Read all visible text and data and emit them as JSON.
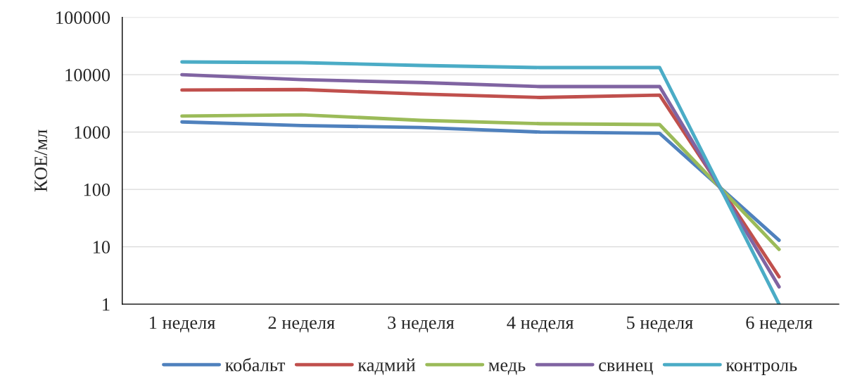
{
  "chart_data": {
    "type": "line",
    "ylabel": "КОЕ/мл",
    "log": "y",
    "grid": "y",
    "legend": "bottom",
    "marker": "none",
    "line_style": "solid",
    "categories": [
      "1 неделя",
      "2 неделя",
      "3 неделя",
      "4 неделя",
      "5 неделя",
      "6 неделя"
    ],
    "ylim": [
      1,
      100000
    ],
    "yticks": [
      1,
      10,
      100,
      1000,
      10000,
      100000
    ],
    "series": [
      {
        "name": "кобальт",
        "color": "#4f81bd",
        "values": [
          1500,
          1300,
          1200,
          1000,
          950,
          13
        ]
      },
      {
        "name": "кадмий",
        "color": "#c0504d",
        "values": [
          5400,
          5500,
          4600,
          4000,
          4400,
          3
        ]
      },
      {
        "name": "медь",
        "color": "#9bbb59",
        "values": [
          1900,
          2000,
          1600,
          1400,
          1350,
          9
        ]
      },
      {
        "name": "свинец",
        "color": "#8064a2",
        "values": [
          10000,
          8200,
          7300,
          6200,
          6200,
          2
        ]
      },
      {
        "name": "контроль",
        "color": "#4bacc6",
        "values": [
          16700,
          16200,
          14500,
          13300,
          13300,
          1
        ]
      }
    ]
  }
}
